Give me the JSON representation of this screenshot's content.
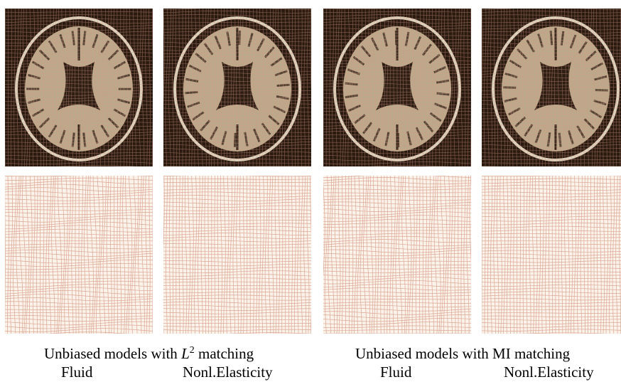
{
  "figure": {
    "groups": [
      {
        "title_prefix": "Unbiased models with ",
        "title_math_base": "L",
        "title_math_sup": "2",
        "title_suffix": " matching",
        "labels": [
          "Fluid",
          "Nonl.Elasticity"
        ]
      },
      {
        "title": "Unbiased models with MI matching",
        "labels": [
          "Fluid",
          "Nonl.Elasticity"
        ]
      }
    ],
    "colors": {
      "background_dark": "#2a1a10",
      "brain_tissue": "#bca88a",
      "skull_ring": "#ddd2bd",
      "ventricle": "#2e1e14",
      "grid_line": "#d69a86",
      "grid_background": "#fbf2ea"
    }
  }
}
